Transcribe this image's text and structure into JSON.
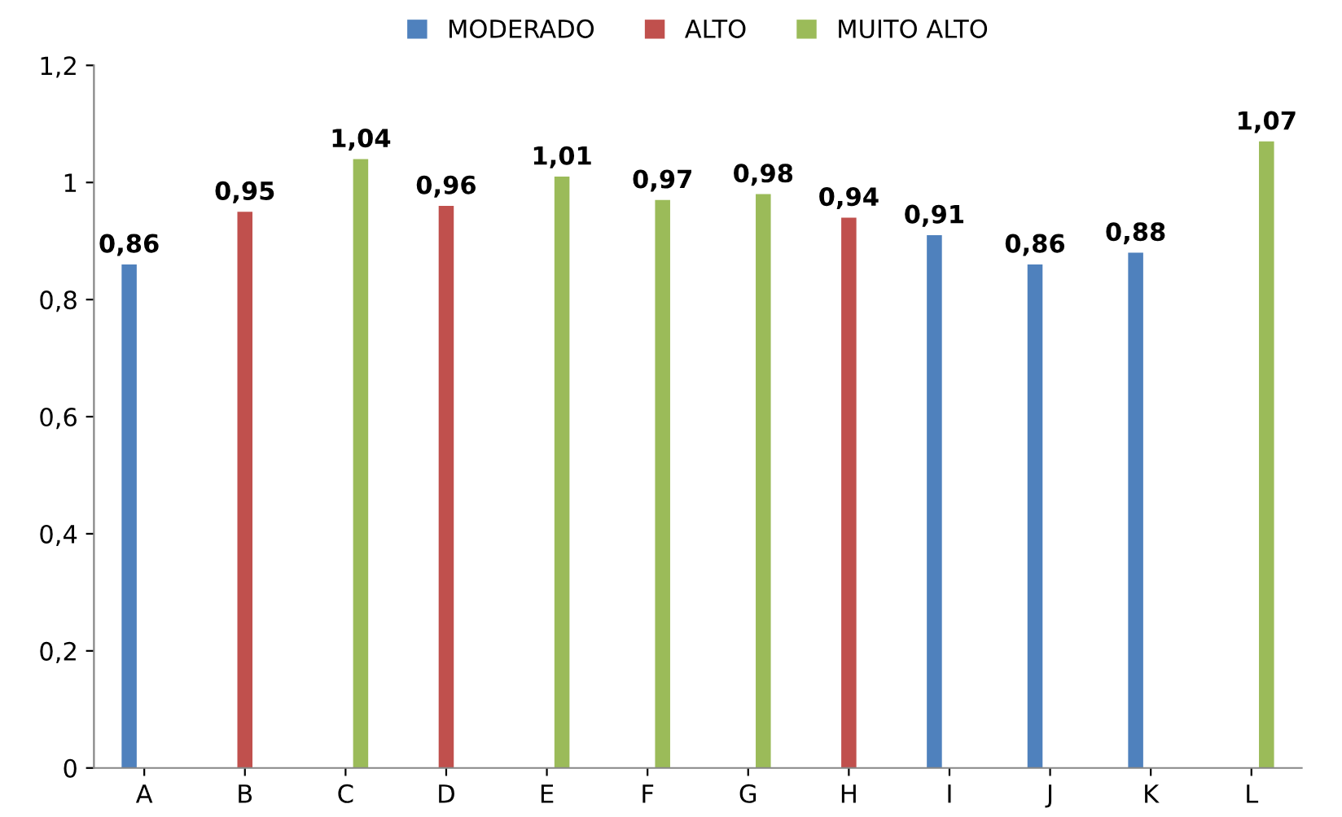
{
  "chart_data": {
    "type": "bar",
    "categories": [
      "A",
      "B",
      "C",
      "D",
      "E",
      "F",
      "G",
      "H",
      "I",
      "J",
      "K",
      "L"
    ],
    "series": [
      {
        "name": "MODERADO",
        "color": "#4f81bd",
        "values": [
          0.86,
          null,
          null,
          null,
          null,
          null,
          null,
          null,
          0.91,
          0.86,
          0.88,
          null
        ],
        "value_labels": [
          "0,86",
          null,
          null,
          null,
          null,
          null,
          null,
          null,
          "0,91",
          "0,86",
          "0,88",
          null
        ]
      },
      {
        "name": "ALTO",
        "color": "#c0504d",
        "values": [
          null,
          0.95,
          null,
          0.96,
          null,
          null,
          null,
          0.94,
          null,
          null,
          null,
          null
        ],
        "value_labels": [
          null,
          "0,95",
          null,
          "0,96",
          null,
          null,
          null,
          "0,94",
          null,
          null,
          null,
          null
        ]
      },
      {
        "name": "MUITO ALTO",
        "color": "#9bbb59",
        "values": [
          null,
          null,
          1.04,
          null,
          1.01,
          0.97,
          0.98,
          null,
          null,
          null,
          null,
          1.07
        ],
        "value_labels": [
          null,
          null,
          "1,04",
          null,
          "1,01",
          "0,97",
          "0,98",
          null,
          null,
          null,
          null,
          "1,07"
        ]
      }
    ],
    "ylim": [
      0,
      1.2
    ],
    "yticks": [
      0,
      {
        "value": 0.2,
        "label": "0,2"
      },
      {
        "value": 0.4,
        "label": "0,4"
      },
      {
        "value": 0.6,
        "label": "0,6"
      },
      {
        "value": 0.8,
        "label": "0,8"
      },
      1,
      {
        "value": 1.2,
        "label": "1,2"
      }
    ],
    "grid": false,
    "legend": "top"
  }
}
